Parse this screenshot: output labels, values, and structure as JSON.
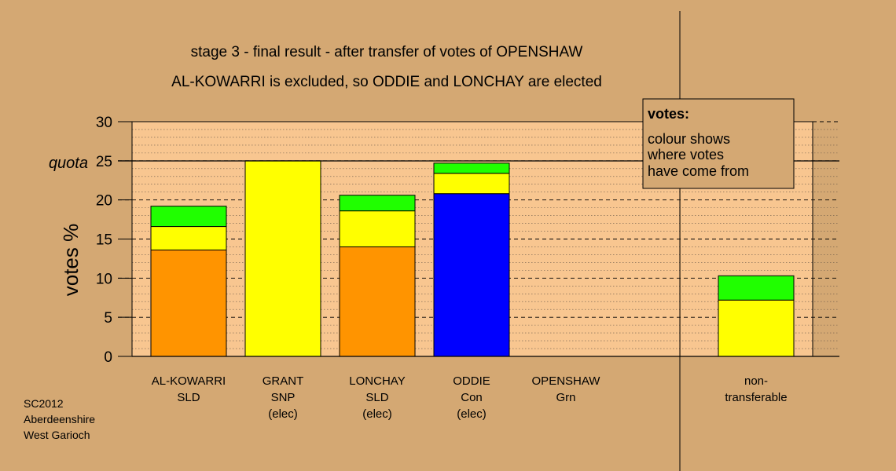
{
  "chart_data": {
    "type": "bar",
    "stacked": true,
    "title": "stage 3 - final result - after transfer of votes of OPENSHAW",
    "subtitle": "AL-KOWARRI is excluded, so ODDIE and LONCHAY are elected",
    "ylabel": "votes %",
    "ylim": [
      0,
      30
    ],
    "yticks": [
      "0",
      "5",
      "10",
      "15",
      "20",
      "25",
      "30"
    ],
    "quota": {
      "label": "quota",
      "value": 25
    },
    "categories": [
      {
        "name": "AL-KOWARRI",
        "party": "SLD",
        "note": ""
      },
      {
        "name": "GRANT",
        "party": "SNP",
        "note": "(elec)"
      },
      {
        "name": "LONCHAY",
        "party": "SLD",
        "note": "(elec)"
      },
      {
        "name": "ODDIE",
        "party": "Con",
        "note": "(elec)"
      },
      {
        "name": "OPENSHAW",
        "party": "Grn",
        "note": ""
      }
    ],
    "nontransferable": {
      "label_1": "non-",
      "label_2": "transferable"
    },
    "bars": [
      {
        "segments": [
          {
            "color": "#ff9400",
            "value": 13.6
          },
          {
            "color": "#ffff00",
            "value": 3.0
          },
          {
            "color": "#20ff00",
            "value": 2.6
          }
        ]
      },
      {
        "segments": [
          {
            "color": "#ffff00",
            "value": 25.0
          }
        ]
      },
      {
        "segments": [
          {
            "color": "#ff9400",
            "value": 14.0
          },
          {
            "color": "#ffff00",
            "value": 4.6
          },
          {
            "color": "#20ff00",
            "value": 2.0
          }
        ]
      },
      {
        "segments": [
          {
            "color": "#0000ff",
            "value": 20.8
          },
          {
            "color": "#ffff00",
            "value": 2.6
          },
          {
            "color": "#20ff00",
            "value": 1.3
          }
        ]
      },
      {
        "segments": []
      },
      {
        "segments": [
          {
            "color": "#ffff00",
            "value": 7.2
          },
          {
            "color": "#20ff00",
            "value": 3.1
          }
        ]
      }
    ],
    "grid": true
  },
  "legend": {
    "title": "votes:",
    "line_1": "colour shows",
    "line_2": "where votes",
    "line_3": "have come from",
    "placement": "top-right"
  },
  "source": {
    "line_1": "SC2012",
    "line_2": "Aberdeenshire",
    "line_3": "West Garioch"
  },
  "colors": {
    "background": "#d4a873",
    "plot_area": "#f8c690"
  }
}
